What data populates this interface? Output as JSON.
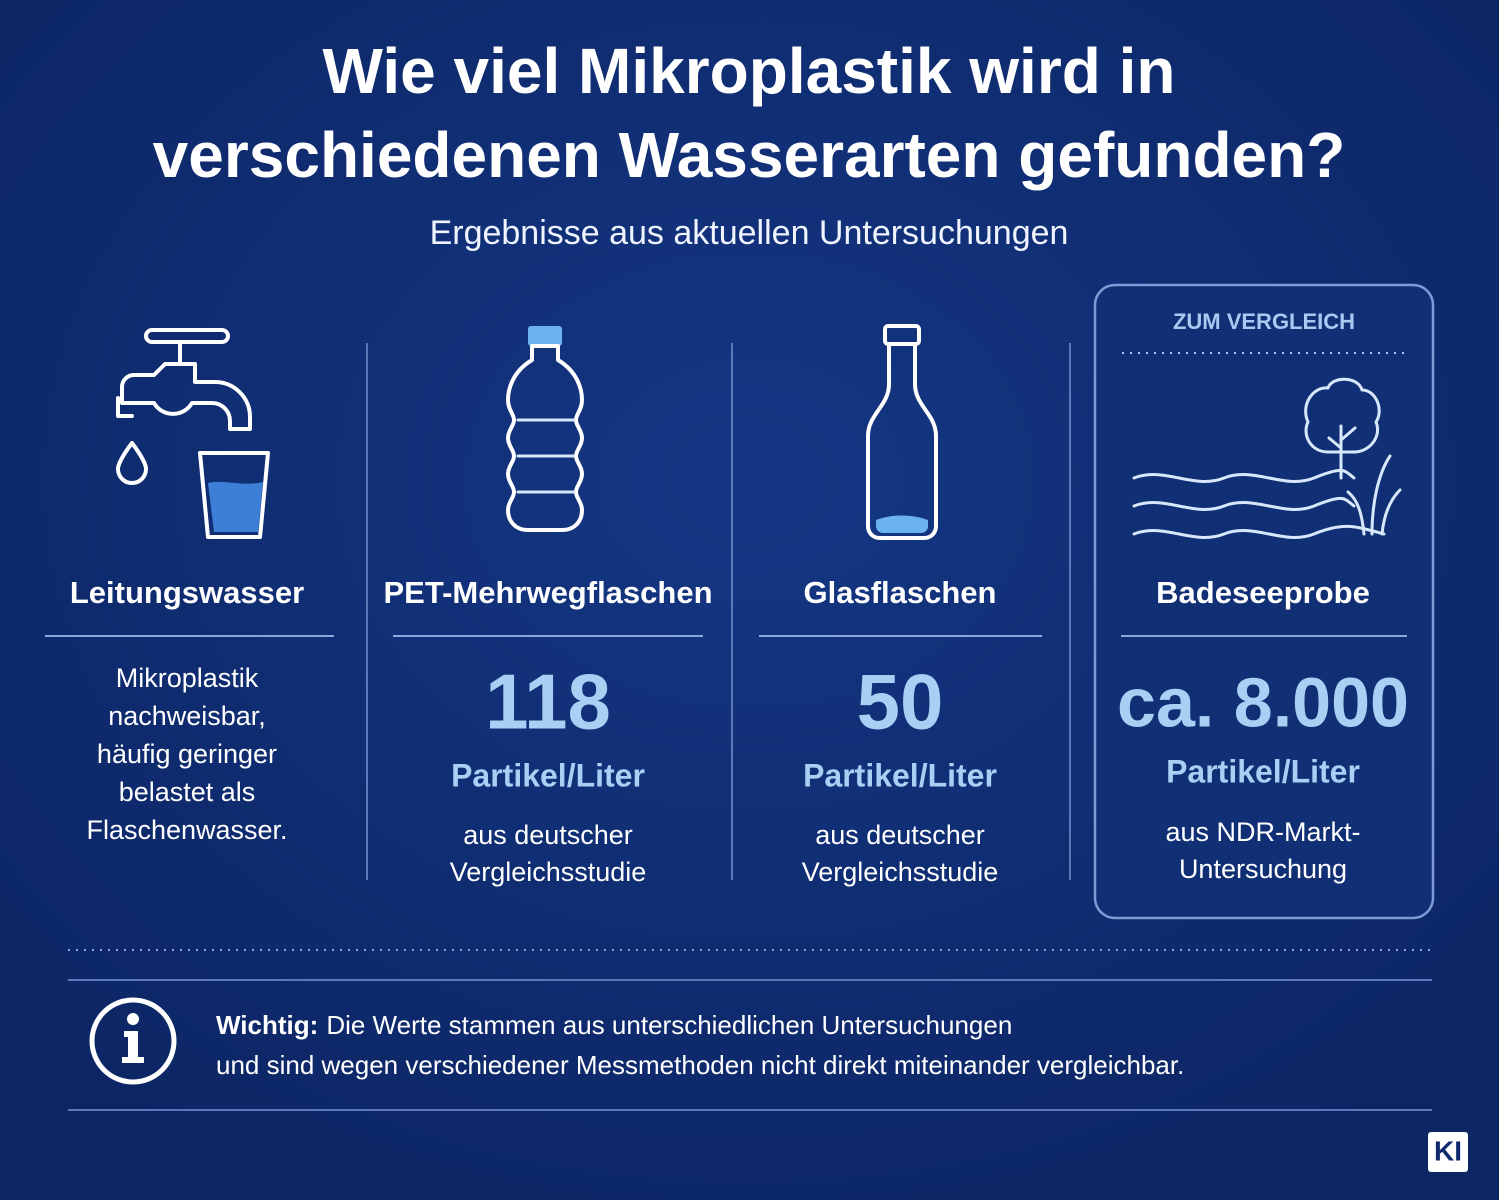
{
  "header": {
    "title": [
      "Wie viel Mikroplastik wird in",
      "verschiedenen Wasserarten gefunden?"
    ],
    "subtitle": "Ergebnisse aus aktuellen Untersuchungen"
  },
  "columns": [
    {
      "name": "Leitungswasser",
      "value": null,
      "unit": null,
      "description": [
        "Mikroplastik",
        "nachweisbar,",
        "häufig geringer",
        "belastet als",
        "Flaschenwasser."
      ]
    },
    {
      "name": "PET-Mehrwegflaschen",
      "value": "118",
      "unit": "Partikel/Liter",
      "description": [
        "aus deutscher",
        "Vergleichsstudie"
      ]
    },
    {
      "name": "Glasflaschen",
      "value": "50",
      "unit": "Partikel/Liter",
      "description": [
        "aus deutscher",
        "Vergleichsstudie"
      ]
    },
    {
      "name": "Badeseeprobe",
      "value": "ca. 8.000",
      "unit": "Partikel/Liter",
      "description": [
        "aus NDR-Markt-",
        "Untersuchung"
      ],
      "tag": "ZUM VERGLEICH"
    }
  ],
  "note": {
    "label": "Wichtig:",
    "lines": [
      "Die Werte stammen aus unterschiedlichen Untersuchungen",
      "und sind wegen verschiedener Messmethoden nicht direkt miteinander vergleichbar."
    ]
  },
  "badge": "KI"
}
